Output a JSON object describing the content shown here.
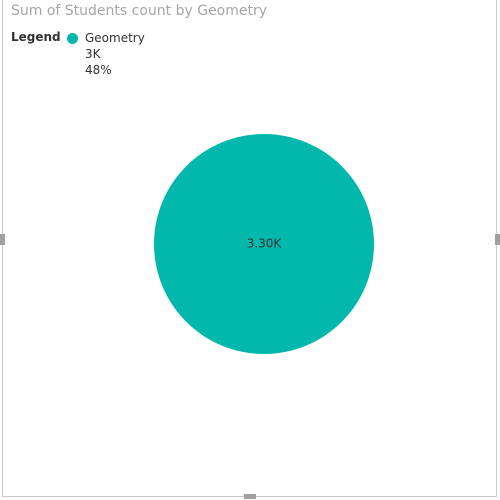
{
  "chart_data": {
    "type": "pie",
    "title": "Sum of Students count by Geometry",
    "legend": {
      "label": "Legend",
      "placement": "top-left"
    },
    "slices": [
      {
        "name": "Geometry",
        "value": 3300,
        "value_label": "3.30K",
        "legend_value": "3K",
        "legend_percent": "48%",
        "color": "#01b8aa"
      }
    ]
  }
}
